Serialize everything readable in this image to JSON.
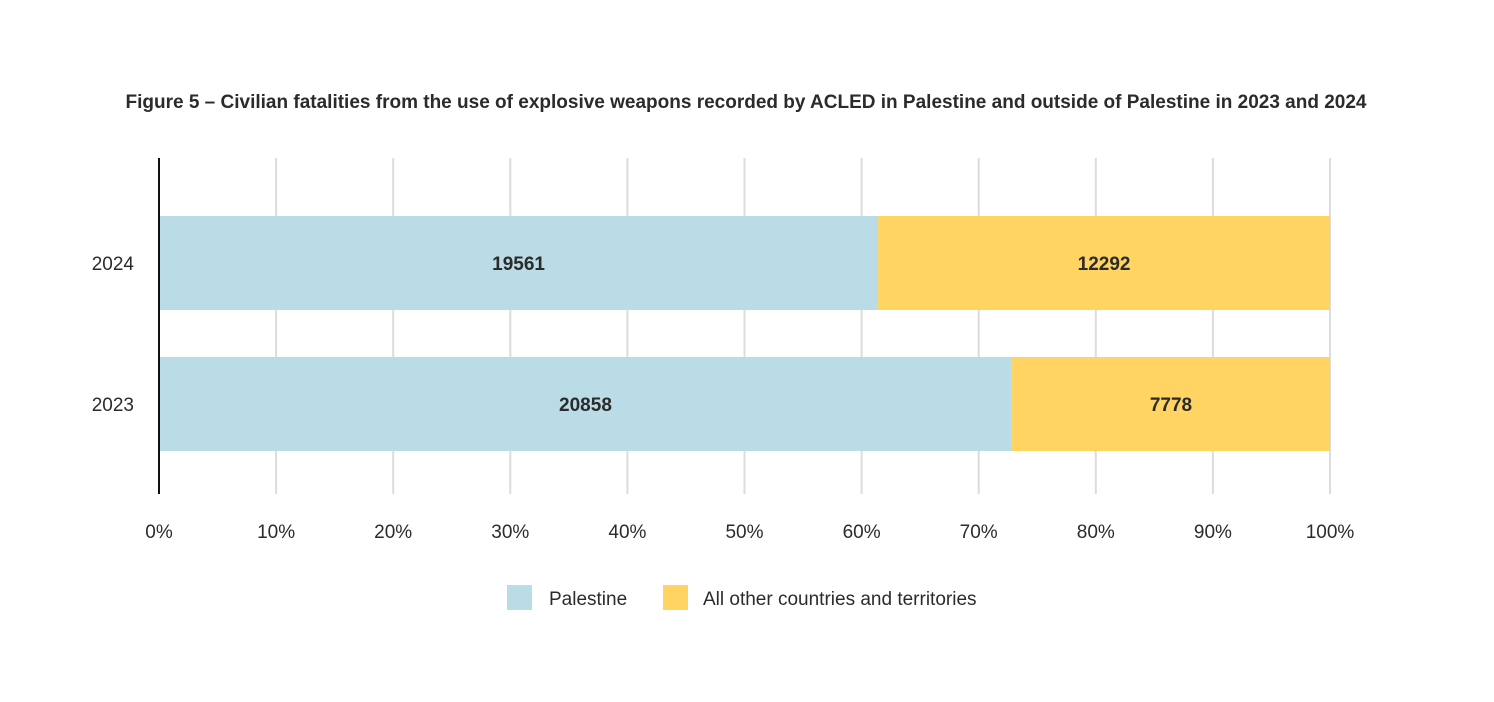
{
  "chart_data": {
    "type": "bar",
    "orientation": "horizontal",
    "stacked": "percent",
    "title": "Figure 5 – Civilian fatalities from the use of explosive weapons recorded by ACLED in Palestine and outside of Palestine in 2023 and 2024",
    "categories": [
      "2024",
      "2023"
    ],
    "series": [
      {
        "name": "Palestine",
        "values": [
          19561,
          20858
        ],
        "color": "#badce6"
      },
      {
        "name": "All other countries and territories",
        "values": [
          12292,
          7778
        ],
        "color": "#ffd462"
      }
    ],
    "xlim": [
      0,
      100
    ],
    "xticks": [
      "0%",
      "10%",
      "20%",
      "30%",
      "40%",
      "50%",
      "60%",
      "70%",
      "80%",
      "90%",
      "100%"
    ],
    "grid": true,
    "legend_position": "bottom"
  }
}
